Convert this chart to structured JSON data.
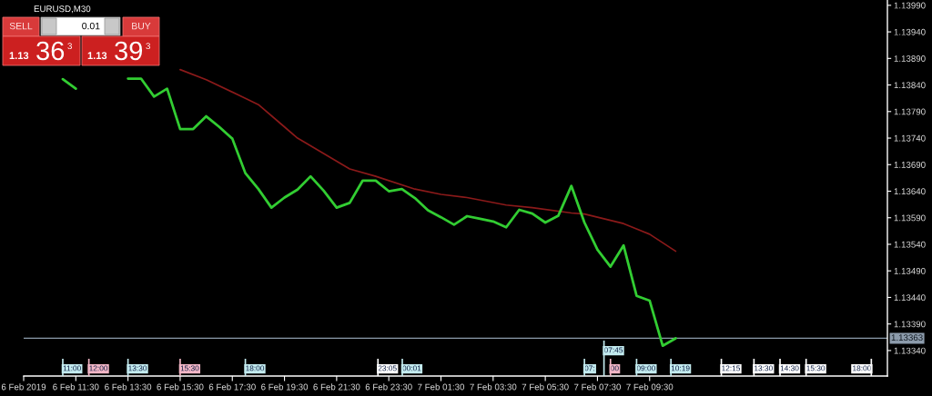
{
  "chart_data": {
    "type": "line",
    "title": "EURUSD,M30",
    "x": [
      "2019-02-06T11:00",
      "2019-02-06T11:30",
      "2019-02-06T12:00",
      "2019-02-06T12:30",
      "2019-02-06T13:00",
      "2019-02-06T13:30",
      "2019-02-06T14:00",
      "2019-02-06T14:30",
      "2019-02-06T15:00",
      "2019-02-06T15:30",
      "2019-02-06T16:00",
      "2019-02-06T16:30",
      "2019-02-06T17:00",
      "2019-02-06T17:30",
      "2019-02-06T18:00",
      "2019-02-06T18:30",
      "2019-02-06T19:00",
      "2019-02-06T19:30",
      "2019-02-06T20:00",
      "2019-02-06T20:30",
      "2019-02-06T21:00",
      "2019-02-06T21:30",
      "2019-02-06T22:00",
      "2019-02-06T22:30",
      "2019-02-06T23:00",
      "2019-02-06T23:30",
      "2019-02-07T00:00",
      "2019-02-07T00:30",
      "2019-02-07T01:00",
      "2019-02-07T01:30",
      "2019-02-07T02:00",
      "2019-02-07T02:30",
      "2019-02-07T03:00",
      "2019-02-07T03:30",
      "2019-02-07T04:00",
      "2019-02-07T04:30",
      "2019-02-07T05:00",
      "2019-02-07T05:30",
      "2019-02-07T06:00",
      "2019-02-07T06:30",
      "2019-02-07T07:00",
      "2019-02-07T07:30",
      "2019-02-07T08:00",
      "2019-02-07T08:30",
      "2019-02-07T09:00",
      "2019-02-07T09:30",
      "2019-02-07T10:00",
      "2019-02-07T10:30"
    ],
    "xlim": [
      "2019-02-06T09:30",
      "2019-02-07T18:37"
    ],
    "xticks": [
      {
        "value": "2019-02-06T09:30",
        "label": "6 Feb 2019"
      },
      {
        "value": "2019-02-06T11:30",
        "label": "6 Feb 11:30"
      },
      {
        "value": "2019-02-06T13:30",
        "label": "6 Feb 13:30"
      },
      {
        "value": "2019-02-06T15:30",
        "label": "6 Feb 15:30"
      },
      {
        "value": "2019-02-06T17:30",
        "label": "6 Feb 17:30"
      },
      {
        "value": "2019-02-06T19:30",
        "label": "6 Feb 19:30"
      },
      {
        "value": "2019-02-06T21:30",
        "label": "6 Feb 21:30"
      },
      {
        "value": "2019-02-06T23:30",
        "label": "6 Feb 23:30"
      },
      {
        "value": "2019-02-07T01:30",
        "label": "7 Feb 01:30"
      },
      {
        "value": "2019-02-07T03:30",
        "label": "7 Feb 03:30"
      },
      {
        "value": "2019-02-07T05:30",
        "label": "7 Feb 05:30"
      },
      {
        "value": "2019-02-07T07:30",
        "label": "7 Feb 07:30"
      },
      {
        "value": "2019-02-07T09:30",
        "label": "7 Feb 09:30"
      }
    ],
    "ylim": [
      1.13292,
      1.14
    ],
    "yticks": [
      {
        "value": 1.1334,
        "label": "1.13340"
      },
      {
        "value": 1.1339,
        "label": "1.13390"
      },
      {
        "value": 1.1344,
        "label": "1.13440"
      },
      {
        "value": 1.1349,
        "label": "1.13490"
      },
      {
        "value": 1.1354,
        "label": "1.13540"
      },
      {
        "value": 1.1359,
        "label": "1.13590"
      },
      {
        "value": 1.1364,
        "label": "1.13640"
      },
      {
        "value": 1.1369,
        "label": "1.13690"
      },
      {
        "value": 1.1374,
        "label": "1.13740"
      },
      {
        "value": 1.1379,
        "label": "1.13790"
      },
      {
        "value": 1.1384,
        "label": "1.13840"
      },
      {
        "value": 1.1389,
        "label": "1.13890"
      },
      {
        "value": 1.1394,
        "label": "1.13940"
      },
      {
        "value": 1.1399,
        "label": "1.13990"
      }
    ],
    "series": [
      {
        "color": "#32cd32",
        "values": [
          1.13851,
          1.13833,
          null,
          null,
          null,
          1.13852,
          1.13852,
          1.13818,
          1.13833,
          1.13757,
          1.13757,
          1.13781,
          1.13761,
          1.13739,
          1.13674,
          1.13644,
          1.13609,
          1.13628,
          1.13643,
          1.13668,
          1.13641,
          1.13609,
          1.13618,
          1.1366,
          1.1366,
          1.1364,
          1.13644,
          1.13627,
          1.13604,
          1.13591,
          1.13577,
          1.13593,
          1.13588,
          1.13583,
          1.13572,
          1.13605,
          1.13598,
          1.13581,
          1.13594,
          1.1365,
          1.13581,
          1.1353,
          1.13498,
          1.13538,
          1.13443,
          1.13434,
          1.13349,
          1.13363
        ]
      },
      {
        "color": "#8b1a1a",
        "x": [
          "2019-02-06T15:30",
          "2019-02-06T16:30",
          "2019-02-06T18:00",
          "2019-02-06T18:30",
          "2019-02-06T19:30",
          "2019-02-06T20:00",
          "2019-02-06T21:00",
          "2019-02-06T22:00",
          "2019-02-06T23:00",
          "2019-02-07T00:30",
          "2019-02-07T01:30",
          "2019-02-07T02:30",
          "2019-02-07T04:00",
          "2019-02-07T05:00",
          "2019-02-07T06:30",
          "2019-02-07T07:00",
          "2019-02-07T08:30",
          "2019-02-07T09:30",
          "2019-02-07T10:30"
        ],
        "values": [
          1.13869,
          1.1385,
          1.13815,
          1.13803,
          1.13761,
          1.1374,
          1.13711,
          1.13682,
          1.13668,
          1.13644,
          1.13634,
          1.13628,
          1.13614,
          1.13609,
          1.13599,
          1.13597,
          1.13579,
          1.13559,
          1.13527
        ]
      }
    ],
    "ref_lines": [
      {
        "axis": "y",
        "value": 1.13363,
        "label": "1.13363",
        "color": "#8c9bab"
      },
      {
        "axis": "x",
        "value": "2019-02-06T11:00",
        "label": "11:00",
        "color": "#c3ebef"
      },
      {
        "axis": "x",
        "value": "2019-02-06T12:00",
        "label": "12:00",
        "color": "#f2b6c6"
      },
      {
        "axis": "x",
        "value": "2019-02-06T13:30",
        "label": "13:30",
        "color": "#c3ebef"
      },
      {
        "axis": "x",
        "value": "2019-02-06T15:30",
        "label": "15:30",
        "color": "#f2b6c6"
      },
      {
        "axis": "x",
        "value": "2019-02-06T18:00",
        "label": "18:00",
        "color": "#c3ebef"
      },
      {
        "axis": "x",
        "value": "2019-02-06T23:05",
        "label": "23:05",
        "color": "#ffffff"
      },
      {
        "axis": "x",
        "value": "2019-02-07T00:01",
        "label": "00:01",
        "color": "#c3ebef"
      },
      {
        "axis": "x",
        "value": "2019-02-07T07:00",
        "label": "07:",
        "color": "#c3ebef"
      },
      {
        "axis": "x",
        "value": "2019-02-07T07:45",
        "label": "07:45",
        "color": "#c3ebef"
      },
      {
        "axis": "x",
        "value": "2019-02-07T08:00",
        "label": "00",
        "color": "#f2b6c6"
      },
      {
        "axis": "x",
        "value": "2019-02-07T09:00",
        "label": "09:00",
        "color": "#c3ebef"
      },
      {
        "axis": "x",
        "value": "2019-02-07T10:19",
        "label": "10:19",
        "color": "#c3ebef"
      },
      {
        "axis": "x",
        "value": "2019-02-07T12:15",
        "label": "12:15",
        "color": "#ffffff"
      },
      {
        "axis": "x",
        "value": "2019-02-07T13:30",
        "label": "13:30",
        "color": "#ffffff"
      },
      {
        "axis": "x",
        "value": "2019-02-07T14:30",
        "label": "14:30",
        "color": "#ffffff"
      },
      {
        "axis": "x",
        "value": "2019-02-07T15:30",
        "label": "15:30",
        "color": "#ffffff"
      },
      {
        "axis": "x",
        "value": "2019-02-07T18:00",
        "label": "18:00",
        "color": "#ffffff"
      }
    ],
    "annotations": [
      "SELL",
      "0.01",
      "BUY",
      "1.13",
      "36",
      "3",
      "1.13",
      "39",
      "3"
    ]
  }
}
